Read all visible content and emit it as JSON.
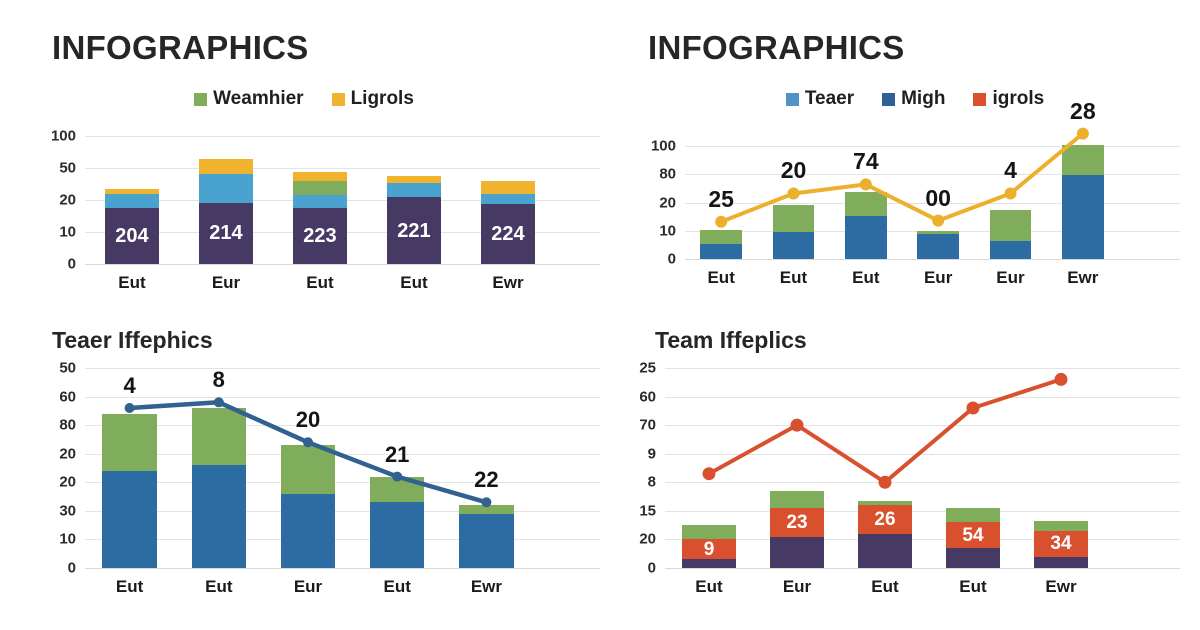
{
  "canvas": {
    "background": "#ffffff"
  },
  "chart_data": [
    {
      "id": "top-left-stacked-bar-chart",
      "type": "bar",
      "title": "INFOGRAPHICS",
      "legend": [
        {
          "label": "Weamhier",
          "color": "#7fad5c"
        },
        {
          "label": "Ligrols",
          "color": "#f1b32e"
        }
      ],
      "categories": [
        "Eut",
        "Eur",
        "Eut",
        "Eut",
        "Ewr"
      ],
      "y_ticks": [
        "100",
        "50",
        "20",
        "10",
        "0"
      ],
      "scale_max": 100,
      "grid": true,
      "legend_position": "top-center",
      "series": [
        {
          "name": "purple-base",
          "color": "#463a64",
          "values": [
            44,
            48,
            44,
            52,
            47
          ],
          "labels": [
            "204",
            "214",
            "223",
            "221",
            "224"
          ]
        },
        {
          "name": "teaer-blue",
          "color": "#4aa2cf",
          "values": [
            11,
            22,
            10,
            11,
            8
          ]
        },
        {
          "name": "weamhier-green",
          "color": "#7fad5c",
          "values": [
            0,
            0,
            11,
            0,
            0
          ]
        },
        {
          "name": "ligrols-yellow",
          "color": "#f1b32e",
          "values": [
            4,
            12,
            7,
            6,
            10
          ]
        }
      ]
    },
    {
      "id": "top-right-stacked-bar-line-chart",
      "type": "bar",
      "title": "INFOGRAPHICS",
      "legend": [
        {
          "label": "Teaer",
          "color": "#4f94c4"
        },
        {
          "label": "Migh",
          "color": "#2d6196"
        },
        {
          "label": "igrols",
          "color": "#d9502f"
        }
      ],
      "categories": [
        "Eut",
        "Eut",
        "Eut",
        "Eur",
        "Eur",
        "Ewr"
      ],
      "y_ticks": [
        "100",
        "80",
        "20",
        "10",
        "0"
      ],
      "scale_max": 100,
      "grid": true,
      "legend_position": "top-center",
      "series": [
        {
          "name": "migh-blue",
          "color": "#2d6ca3",
          "values": [
            13,
            24,
            38,
            22,
            16,
            74
          ]
        },
        {
          "name": "green-top",
          "color": "#7fad5c",
          "values": [
            13,
            24,
            21,
            3,
            27,
            27
          ]
        }
      ],
      "line": {
        "name": "ligrols-yellow-line",
        "color": "#edb02d",
        "stroke_width": 4,
        "marker_r": 6,
        "values": [
          33,
          58,
          66,
          34,
          58,
          111
        ],
        "labels": [
          "25",
          "20",
          "74",
          "00",
          "4",
          "28"
        ]
      }
    },
    {
      "id": "bottom-left-stacked-bar-line-chart",
      "type": "bar",
      "title": "Teaer Iffephics",
      "categories": [
        "Eut",
        "Eut",
        "Eur",
        "Eut",
        "Ewr"
      ],
      "y_ticks": [
        "50",
        "60",
        "80",
        "20",
        "20",
        "30",
        "10",
        "0"
      ],
      "scale_max": 70,
      "grid": true,
      "series": [
        {
          "name": "blue-base",
          "color": "#2d6ca3",
          "values": [
            34,
            36,
            26,
            23,
            19
          ]
        },
        {
          "name": "green-top",
          "color": "#7fad5c",
          "values": [
            20,
            20,
            17,
            9,
            3
          ]
        }
      ],
      "line": {
        "name": "blue-trend-line",
        "color": "#31618f",
        "stroke_width": 4.5,
        "marker_r": 5,
        "values": [
          56,
          58,
          44,
          32,
          23
        ],
        "labels": [
          "4",
          "8",
          "20",
          "21",
          "22"
        ]
      }
    },
    {
      "id": "bottom-right-stacked-bar-line-chart",
      "type": "bar",
      "title": "Team Iffeplics",
      "categories": [
        "Eut",
        "Eur",
        "Eut",
        "Eut",
        "Ewr"
      ],
      "y_ticks": [
        "25",
        "60",
        "70",
        "9",
        "8",
        "15",
        "20",
        "0"
      ],
      "scale_max": 70,
      "grid": true,
      "series": [
        {
          "name": "purple-base",
          "color": "#463a64",
          "values": [
            3,
            11,
            12,
            7,
            4
          ]
        },
        {
          "name": "red-mid",
          "color": "#d9502f",
          "values": [
            7,
            10,
            10,
            9,
            9
          ],
          "labels": [
            "9",
            "23",
            "26",
            "54",
            "34"
          ]
        },
        {
          "name": "green-top",
          "color": "#7fad5c",
          "values": [
            5,
            6,
            1.5,
            5,
            3.5
          ]
        }
      ],
      "line": {
        "name": "red-trend-line",
        "color": "#d9502f",
        "stroke_width": 4,
        "marker_r": 6.5,
        "values": [
          33,
          50,
          30,
          56,
          66
        ]
      }
    }
  ]
}
